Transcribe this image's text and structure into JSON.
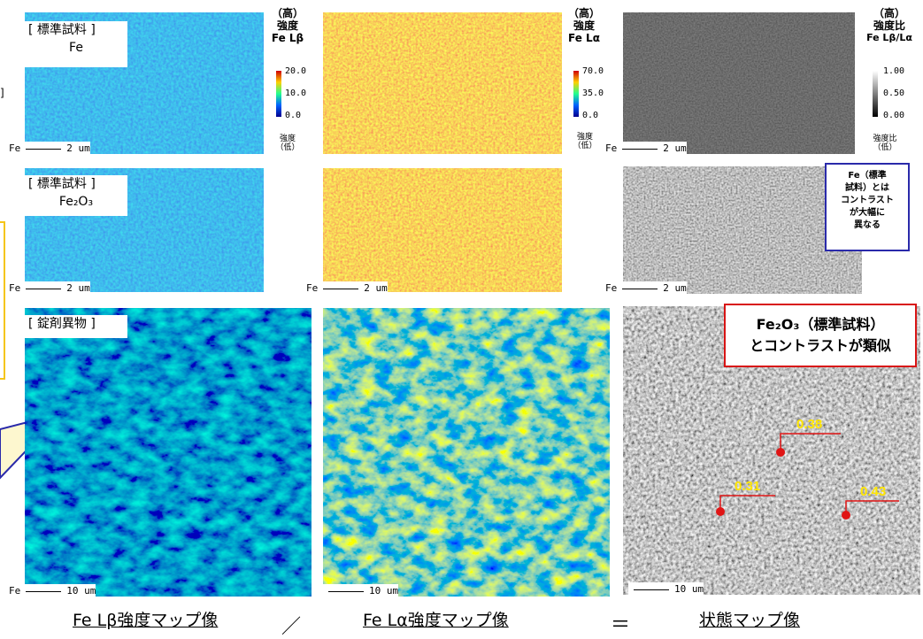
{
  "rows": [
    {
      "label_line1": "[ 標準試料 ]",
      "label_line2": "Fe"
    },
    {
      "label_line1": "[ 標準試料 ]",
      "label_line2": "Fe₂O₃"
    },
    {
      "label_line1": "[ 錠剤異物 ]",
      "label_line2": ""
    }
  ],
  "scale_labels": {
    "fe": "Fe",
    "two_um": "2 um",
    "ten_um": "10 um"
  },
  "side_bracket": "]",
  "legends": {
    "lb": {
      "high": "（高）",
      "title": "強度",
      "name": "Fe Lβ",
      "ticks": [
        "20.0",
        "10.0",
        "0.0"
      ],
      "low1": "強度",
      "low2": "（低）"
    },
    "la": {
      "high": "（高）",
      "title": "強度",
      "name": "Fe Lα",
      "ticks": [
        "70.0",
        "35.0",
        "0.0"
      ],
      "low1": "強度",
      "low2": "（低）"
    },
    "ratio": {
      "high": "（高）",
      "title": "強度比",
      "name": "Fe Lβ/Lα",
      "ticks": [
        "1.00",
        "0.50",
        "0.00"
      ],
      "low1": "強度比",
      "low2": "（低）"
    }
  },
  "callouts": {
    "blue": [
      "Fe（標準",
      "試料）とは",
      "コントラスト",
      "が大幅に",
      "異なる"
    ],
    "red": [
      "Fe₂O₃（標準試料）",
      "とコントラストが類似"
    ]
  },
  "points": [
    {
      "label": "0.38"
    },
    {
      "label": "0.31"
    },
    {
      "label": "0.43"
    }
  ],
  "footer": {
    "lb_caption": "Fe Lβ強度マップ像",
    "divide": "／",
    "la_caption": "Fe Lα強度マップ像",
    "equals": "＝",
    "state_caption": "状態マップ像"
  },
  "colors": {
    "blue_map": "#1a5fd6",
    "orange_map": "#f19a2a",
    "callout_blue": "#2a2aaa",
    "callout_red": "#d81414",
    "point_red": "#e01515",
    "point_label": "#ffe600",
    "side_box": "#f5c518"
  }
}
